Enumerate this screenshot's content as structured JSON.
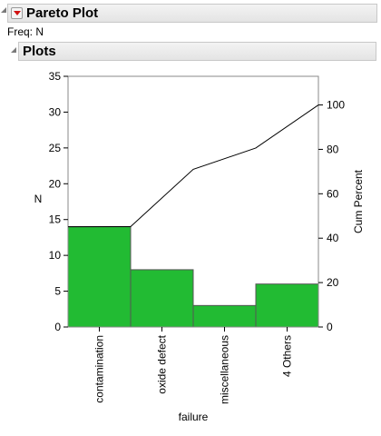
{
  "report": {
    "title": "Pareto Plot",
    "freq_label": "Freq: N",
    "plots_title": "Plots"
  },
  "chart_data": {
    "type": "bar",
    "categories": [
      "contamination",
      "oxide defect",
      "miscellaneous",
      "4 Others"
    ],
    "values": [
      14,
      8,
      3,
      6
    ],
    "cum_percent": [
      45.2,
      71.0,
      80.6,
      100.0
    ],
    "xlabel": "failure",
    "ylabel": "N",
    "y2label": "Cum Percent",
    "ylim": [
      0,
      35
    ],
    "y2lim": [
      0,
      112.9
    ],
    "yticks": [
      0,
      5,
      10,
      15,
      20,
      25,
      30,
      35
    ],
    "y2ticks": [
      0,
      20,
      40,
      60,
      80,
      100
    ],
    "grid": false,
    "colors": {
      "bar": "#22bb33",
      "bar_edge": "#555555",
      "line": "#000000"
    }
  }
}
